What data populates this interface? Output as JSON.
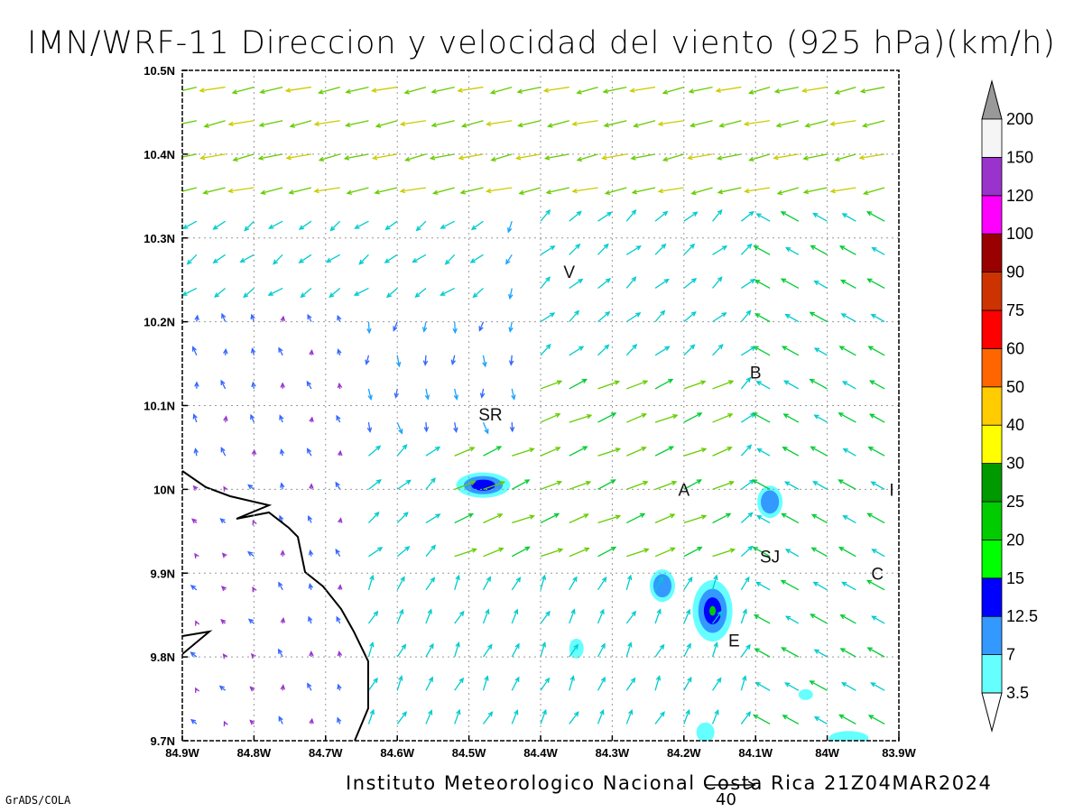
{
  "title": "IMN/WRF-11 Direccion y velocidad del viento (925 hPa)(km/h)",
  "footer": "Instituto Meteorologico Nacional Costa Rica 21Z04MAR2024",
  "software_credit": "GrADS/COLA",
  "reference_vector": {
    "label": "40"
  },
  "axes": {
    "lon_labels": [
      "84.9W",
      "84.8W",
      "84.7W",
      "84.6W",
      "84.5W",
      "84.4W",
      "84.3W",
      "84.2W",
      "84.1W",
      "84W",
      "83.9W"
    ],
    "lat_labels": [
      "10.5N",
      "10.4N",
      "10.3N",
      "10.2N",
      "10.1N",
      "10N",
      "9.9N",
      "9.8N",
      "9.7N"
    ],
    "lon_range": [
      -84.9,
      -83.9
    ],
    "lat_range": [
      9.7,
      10.5
    ]
  },
  "colorbar": {
    "labels": [
      "3.5",
      "7",
      "12.5",
      "15",
      "20",
      "25",
      "30",
      "40",
      "50",
      "60",
      "75",
      "90",
      "100",
      "120",
      "150",
      "200"
    ],
    "colors": [
      "#66ffff",
      "#3399ff",
      "#0000ff",
      "#00ff00",
      "#00cc00",
      "#009900",
      "#ffff00",
      "#ffcc00",
      "#ff6600",
      "#ff0000",
      "#cc3300",
      "#990000",
      "#ff00ff",
      "#9933cc",
      "#f5f5f5"
    ],
    "arrow_color": "#999999"
  },
  "place_labels": [
    {
      "label": "V",
      "lon": -84.36,
      "lat": 10.26
    },
    {
      "label": "SR",
      "lon": -84.47,
      "lat": 10.09
    },
    {
      "label": "B",
      "lon": -84.1,
      "lat": 10.14
    },
    {
      "label": "A",
      "lon": -84.2,
      "lat": 10.0
    },
    {
      "label": "SJ",
      "lon": -84.08,
      "lat": 9.92
    },
    {
      "label": "C",
      "lon": -83.93,
      "lat": 9.9
    },
    {
      "label": "E",
      "lon": -84.13,
      "lat": 9.82
    },
    {
      "label": "I",
      "lon": -83.91,
      "lat": 10.0
    }
  ]
}
